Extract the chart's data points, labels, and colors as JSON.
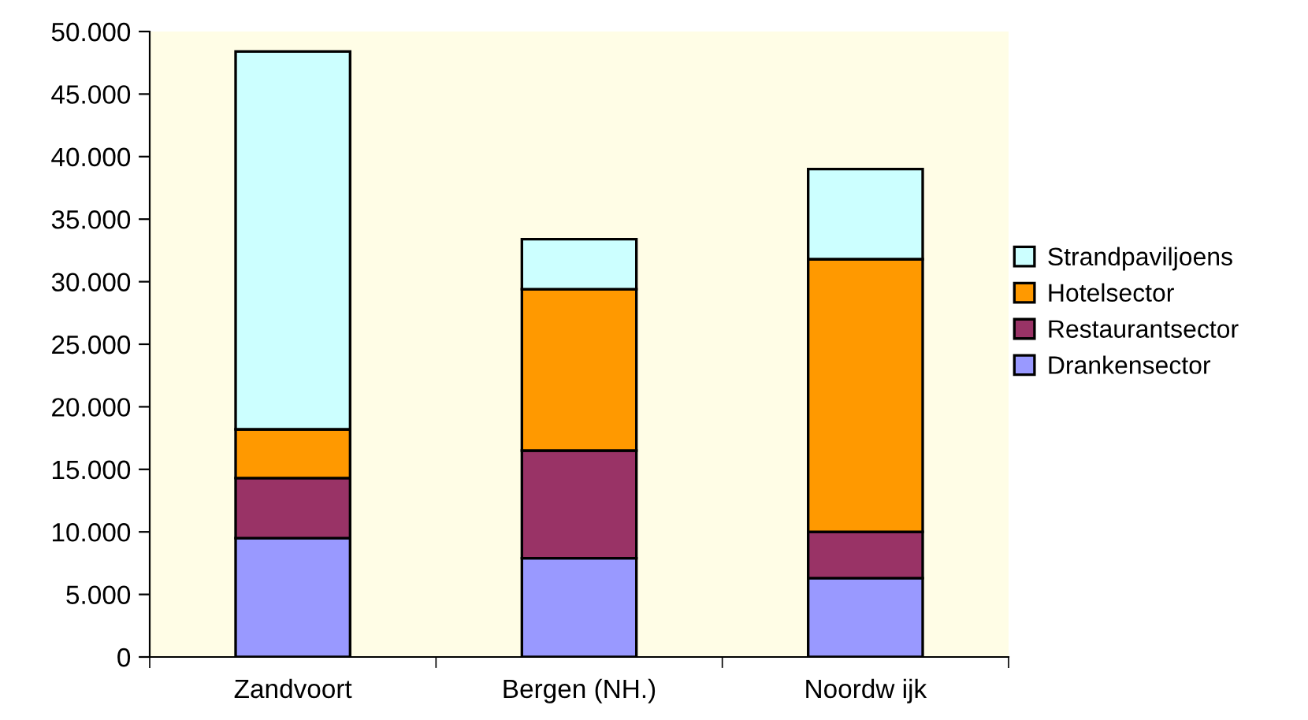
{
  "chart_data": {
    "type": "bar",
    "stacked": true,
    "categories": [
      "Zandvoort",
      "Bergen (NH.)",
      "Noordw ijk"
    ],
    "series": [
      {
        "name": "Drankensector",
        "color": "#9999ff",
        "values": [
          9500,
          7900,
          6300
        ]
      },
      {
        "name": "Restaurantsector",
        "color": "#993366",
        "values": [
          4800,
          8600,
          3700
        ]
      },
      {
        "name": "Hotelsector",
        "color": "#ff9900",
        "values": [
          3900,
          12900,
          21800
        ]
      },
      {
        "name": "Strandpaviljoens",
        "color": "#ccffff",
        "values": [
          30200,
          4000,
          7200
        ]
      }
    ],
    "ylim": [
      0,
      50000
    ],
    "yticks": [
      0,
      {
        "value": 5000,
        "label": "5.000"
      },
      {
        "value": 10000,
        "label": "10.000"
      },
      {
        "value": 15000,
        "label": "15.000"
      },
      {
        "value": 20000,
        "label": "20.000"
      },
      {
        "value": 25000,
        "label": "25.000"
      },
      {
        "value": 30000,
        "label": "30.000"
      },
      {
        "value": 35000,
        "label": "35.000"
      },
      {
        "value": 40000,
        "label": "40.000"
      },
      {
        "value": 45000,
        "label": "45.000"
      },
      {
        "value": 50000,
        "label": "50.000"
      }
    ],
    "grid": false,
    "legend": "right"
  }
}
